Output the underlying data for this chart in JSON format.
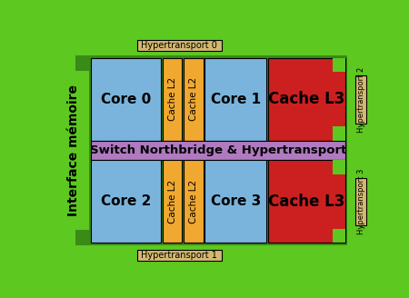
{
  "bg_color": "#5cc820",
  "inner_bg_color": "#3a8a18",
  "core_color": "#7ab4dc",
  "cache_l2_color": "#f0a830",
  "cache_l3_color": "#cc2020",
  "switch_color": "#b07ac0",
  "ht_color": "#d4b870",
  "text_color": "#000000",
  "labels": {
    "interface": "Interface mémoire",
    "core0": "Core 0",
    "core1": "Core 1",
    "core2": "Core 2",
    "core3": "Core 3",
    "cacheL2": "Cache L2",
    "cacheL3": "Cache L3",
    "switch": "Switch Northbridge & Hypertransport",
    "ht0": "Hypertransport 0",
    "ht1": "Hypertransport 1",
    "ht2": "Hypertransport 2",
    "ht3": "Hypertransport 3"
  }
}
